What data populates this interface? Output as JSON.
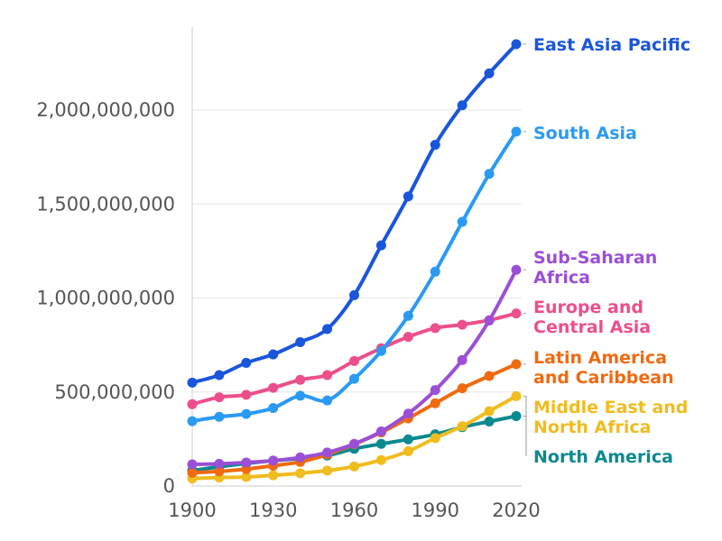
{
  "chart_data": {
    "type": "line",
    "title": "",
    "xlabel": "",
    "ylabel": "",
    "x": [
      1900,
      1910,
      1920,
      1930,
      1940,
      1950,
      1960,
      1970,
      1980,
      1990,
      2000,
      2010,
      2020
    ],
    "xticks": [
      1900,
      1930,
      1960,
      1990,
      2020
    ],
    "xtick_labels": [
      "1900",
      "1930",
      "1960",
      "1990",
      "2020"
    ],
    "xlim": [
      1900,
      2020
    ],
    "yticks": [
      0,
      500000000,
      1000000000,
      1500000000,
      2000000000
    ],
    "ytick_labels": [
      "0",
      "500,000,000",
      "1,000,000,000",
      "1,500,000,000",
      "2,000,000,000"
    ],
    "ylim": [
      0,
      2450000000
    ],
    "grid": "horizontal",
    "legend": "direct labels at right end of lines",
    "series": [
      {
        "name": "East Asia Pacific",
        "label_lines": [
          "East Asia Pacific"
        ],
        "color": "#1a56db",
        "values": [
          550000000,
          590000000,
          655000000,
          700000000,
          765000000,
          835000000,
          1015000000,
          1280000000,
          1540000000,
          1815000000,
          2025000000,
          2195000000,
          2350000000
        ]
      },
      {
        "name": "South Asia",
        "label_lines": [
          "South Asia"
        ],
        "color": "#2b9af3",
        "values": [
          345000000,
          368000000,
          383000000,
          415000000,
          480000000,
          455000000,
          570000000,
          718000000,
          905000000,
          1140000000,
          1405000000,
          1660000000,
          1885000000
        ]
      },
      {
        "name": "Sub-Saharan Africa",
        "label_lines": [
          "Sub-Saharan",
          "Africa"
        ],
        "color": "#9b4fd6",
        "values": [
          115000000,
          118000000,
          125000000,
          135000000,
          152000000,
          178000000,
          224000000,
          290000000,
          385000000,
          510000000,
          670000000,
          880000000,
          1150000000
        ]
      },
      {
        "name": "Europe and Central Asia",
        "label_lines": [
          "Europe and",
          "Central Asia"
        ],
        "color": "#ec4f8c",
        "values": [
          435000000,
          472000000,
          485000000,
          522000000,
          565000000,
          590000000,
          665000000,
          733000000,
          793000000,
          840000000,
          858000000,
          882000000,
          918000000
        ]
      },
      {
        "name": "Latin America and Caribbean",
        "label_lines": [
          "Latin America",
          "and Caribbean"
        ],
        "color": "#f06a10",
        "values": [
          70000000,
          78000000,
          90000000,
          108000000,
          128000000,
          168000000,
          222000000,
          285000000,
          360000000,
          440000000,
          520000000,
          585000000,
          648000000
        ]
      },
      {
        "name": "Middle East and North Africa",
        "label_lines": [
          "Middle East and",
          "North Africa"
        ],
        "color": "#f0bc1e",
        "values": [
          40000000,
          45000000,
          48000000,
          57000000,
          68000000,
          82000000,
          104000000,
          138000000,
          185000000,
          255000000,
          318000000,
          398000000,
          478000000
        ]
      },
      {
        "name": "North America",
        "label_lines": [
          "North America"
        ],
        "color": "#0b8a8f",
        "values": [
          82000000,
          102000000,
          120000000,
          135000000,
          146000000,
          162000000,
          198000000,
          224000000,
          248000000,
          275000000,
          313000000,
          343000000,
          372000000
        ]
      }
    ]
  }
}
